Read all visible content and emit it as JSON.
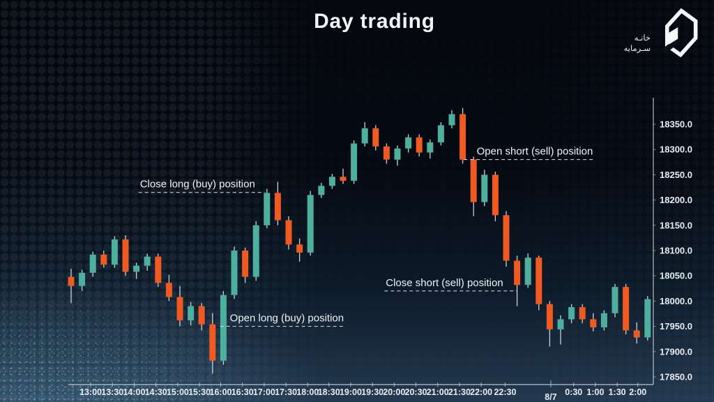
{
  "title": "Day trading",
  "logo": {
    "brand_line1": "خانـه",
    "brand_line2": "سـرمايه"
  },
  "chart_data": {
    "type": "candlestick",
    "title": "Day trading",
    "timeframe_minutes": 15,
    "y_axis": {
      "ticks": [
        18350,
        18300,
        18250,
        18200,
        18150,
        18100,
        18050,
        18000,
        17950,
        17900,
        17850
      ],
      "decimals": 1,
      "ylim": [
        17832,
        18402
      ]
    },
    "x_axis": {
      "labels": [
        {
          "label": "13:00",
          "slot": 1.8
        },
        {
          "label": "13:30",
          "slot": 3.8
        },
        {
          "label": "14:00",
          "slot": 5.8
        },
        {
          "label": "14:30",
          "slot": 7.8
        },
        {
          "label": "15:00",
          "slot": 9.8
        },
        {
          "label": "15:30",
          "slot": 11.8
        },
        {
          "label": "16:00",
          "slot": 13.75
        },
        {
          "label": "16:30",
          "slot": 15.75
        },
        {
          "label": "17:00",
          "slot": 17.75
        },
        {
          "label": "17:30",
          "slot": 19.75
        },
        {
          "label": "18:00",
          "slot": 21.75
        },
        {
          "label": "18:30",
          "slot": 23.7
        },
        {
          "label": "19:00",
          "slot": 25.7
        },
        {
          "label": "19:30",
          "slot": 27.7
        },
        {
          "label": "20:00",
          "slot": 29.7
        },
        {
          "label": "20:30",
          "slot": 31.7
        },
        {
          "label": "21:00",
          "slot": 33.7
        },
        {
          "label": "21:30",
          "slot": 35.7
        },
        {
          "label": "22:00",
          "slot": 37.7
        },
        {
          "label": "22:30",
          "slot": 39.9
        },
        {
          "label": "8/7",
          "slot": 44.1,
          "is_date": true
        },
        {
          "label": "0:30",
          "slot": 46.2
        },
        {
          "label": "1:00",
          "slot": 48.2
        },
        {
          "label": "1:30",
          "slot": 50.2
        },
        {
          "label": "2:00",
          "slot": 52.1
        }
      ]
    },
    "candles": {
      "ohlc": [
        [
          18048,
          18064,
          17996,
          18030
        ],
        [
          18030,
          18062,
          18020,
          18056
        ],
        [
          18056,
          18098,
          18048,
          18092
        ],
        [
          18092,
          18100,
          18066,
          18072
        ],
        [
          18072,
          18128,
          18066,
          18122
        ],
        [
          18122,
          18130,
          18050,
          18058
        ],
        [
          18058,
          18076,
          18044,
          18070
        ],
        [
          18070,
          18094,
          18060,
          18088
        ],
        [
          18088,
          18094,
          18028,
          18036
        ],
        [
          18036,
          18052,
          18000,
          18008
        ],
        [
          18008,
          18030,
          17950,
          17962
        ],
        [
          17962,
          17998,
          17952,
          17990
        ],
        [
          17990,
          17996,
          17942,
          17954
        ],
        [
          17954,
          17976,
          17856,
          17882
        ],
        [
          17882,
          18020,
          17874,
          18012
        ],
        [
          18012,
          18108,
          18004,
          18100
        ],
        [
          18100,
          18106,
          18036,
          18048
        ],
        [
          18048,
          18158,
          18040,
          18150
        ],
        [
          18150,
          18222,
          18144,
          18214
        ],
        [
          18214,
          18236,
          18150,
          18160
        ],
        [
          18160,
          18168,
          18102,
          18112
        ],
        [
          18112,
          18124,
          18078,
          18096
        ],
        [
          18096,
          18218,
          18090,
          18210
        ],
        [
          18210,
          18234,
          18204,
          18228
        ],
        [
          18228,
          18252,
          18222,
          18246
        ],
        [
          18246,
          18262,
          18232,
          18238
        ],
        [
          18238,
          18318,
          18232,
          18312
        ],
        [
          18312,
          18354,
          18306,
          18342
        ],
        [
          18342,
          18348,
          18298,
          18306
        ],
        [
          18306,
          18312,
          18272,
          18280
        ],
        [
          18280,
          18308,
          18268,
          18302
        ],
        [
          18302,
          18330,
          18294,
          18324
        ],
        [
          18324,
          18330,
          18286,
          18294
        ],
        [
          18294,
          18320,
          18282,
          18314
        ],
        [
          18314,
          18354,
          18308,
          18348
        ],
        [
          18348,
          18378,
          18342,
          18370
        ],
        [
          18370,
          18382,
          18272,
          18280
        ],
        [
          18280,
          18286,
          18168,
          18196
        ],
        [
          18196,
          18260,
          18188,
          18250
        ],
        [
          18250,
          18256,
          18158,
          18170
        ],
        [
          18170,
          18178,
          18068,
          18080
        ],
        [
          18080,
          18090,
          17990,
          18032
        ],
        [
          18032,
          18094,
          18026,
          18086
        ],
        [
          18086,
          18090,
          17982,
          17994
        ],
        [
          17994,
          18000,
          17910,
          17944
        ],
        [
          17944,
          17972,
          17914,
          17964
        ],
        [
          17964,
          17994,
          17956,
          17988
        ],
        [
          17988,
          17994,
          17956,
          17964
        ],
        [
          17964,
          17976,
          17940,
          17948
        ],
        [
          17948,
          17982,
          17942,
          17976
        ],
        [
          17976,
          18034,
          17968,
          18028
        ],
        [
          18028,
          18034,
          17934,
          17942
        ],
        [
          17942,
          17958,
          17916,
          17928
        ],
        [
          17928,
          18010,
          17922,
          18004
        ]
      ]
    },
    "annotations": [
      {
        "label": "Close long (buy) position",
        "price": 18215,
        "from_slot": 6.2,
        "to_slot": 17.8,
        "align": "left"
      },
      {
        "label": "Open long (buy) position",
        "price": 17950,
        "from_slot": 13.7,
        "to_slot": 25.2,
        "align": "right"
      },
      {
        "label": "Open short (sell) position",
        "price": 18280,
        "from_slot": 36.1,
        "to_slot": 48.1,
        "align": "right"
      },
      {
        "label": "Close short (sell) position",
        "price": 18020,
        "from_slot": 28.8,
        "to_slot": 41.0,
        "align": "left"
      }
    ],
    "colors": {
      "up": "#4DAF9E",
      "down": "#F0591F",
      "wick": "#C9D3DB",
      "axis": "#C9D3DB",
      "tick_label": "#E8EDF2",
      "annotation_text": "#F0F4F8",
      "annotation_line": "#DDE4EA"
    }
  }
}
